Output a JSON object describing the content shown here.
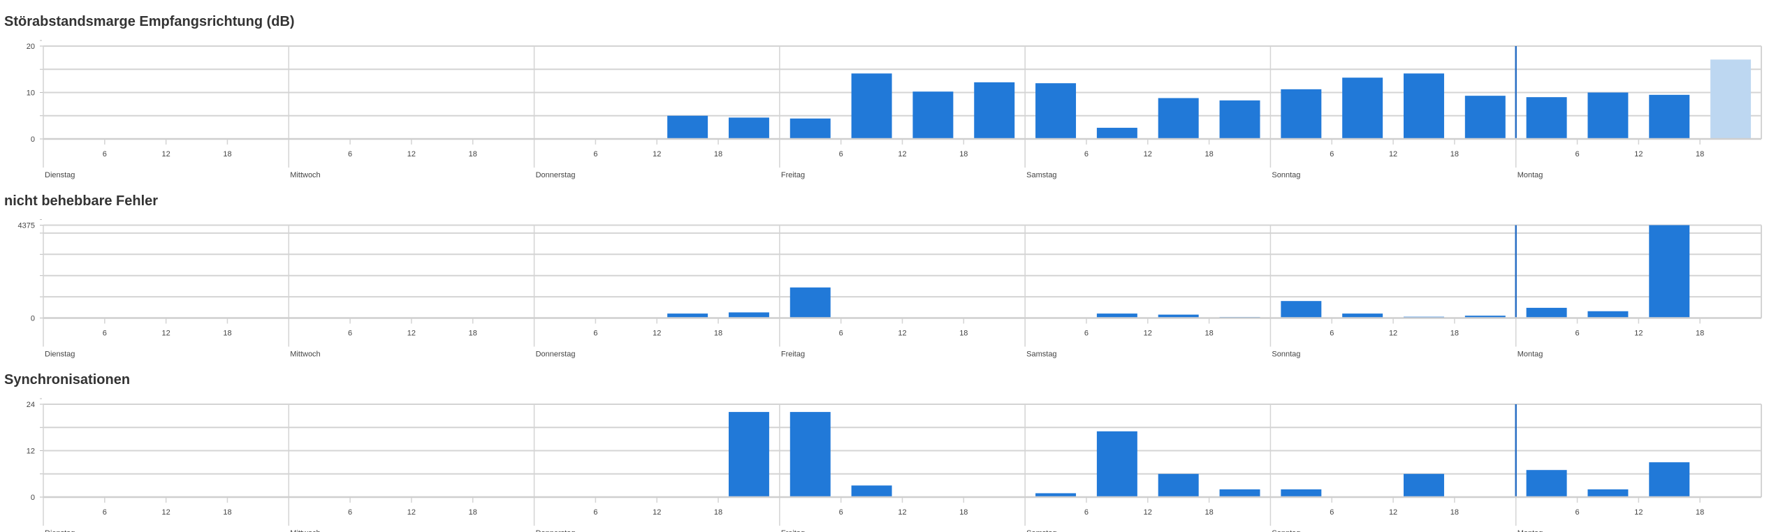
{
  "colors": {
    "bar": "#2179d8",
    "bar_pending": "#bdd7f1",
    "grid": "#d4d4d4",
    "now_line": "#2a6fc4"
  },
  "chart_data": [
    {
      "type": "bar",
      "title": "Störabstandsmarge Empfangsrichtung (dB)",
      "ylim": [
        0,
        20
      ],
      "yticks": [
        0,
        10,
        20
      ],
      "ygrid": [
        0,
        5,
        10,
        15,
        20
      ],
      "days": [
        "Dienstag",
        "Mittwoch",
        "Donnerstag",
        "Freitag",
        "Samstag",
        "Sonntag",
        "Montag"
      ],
      "hour_ticks": [
        "6",
        "12",
        "18"
      ],
      "bin_hours": 6,
      "values": [
        null,
        null,
        null,
        null,
        null,
        null,
        null,
        null,
        null,
        null,
        5,
        4.6,
        4.4,
        14.1,
        10.2,
        12.2,
        12,
        2.4,
        8.8,
        8.3,
        10.7,
        13.2,
        14.1,
        9.3,
        9,
        10,
        9.5,
        17.1
      ],
      "pending_index": 27
    },
    {
      "type": "bar",
      "title": "nicht behebbare Fehler",
      "ylim": [
        0,
        4375
      ],
      "yticks": [
        0,
        4375
      ],
      "ygrid": [
        0,
        1000,
        2000,
        3000,
        4000,
        4375
      ],
      "days": [
        "Dienstag",
        "Mittwoch",
        "Donnerstag",
        "Freitag",
        "Samstag",
        "Sonntag",
        "Montag"
      ],
      "hour_ticks": [
        "6",
        "12",
        "18"
      ],
      "bin_hours": 6,
      "values": [
        null,
        null,
        null,
        null,
        null,
        null,
        null,
        null,
        null,
        null,
        210,
        265,
        1440,
        0,
        0,
        10,
        0,
        210,
        160,
        50,
        800,
        210,
        60,
        110,
        480,
        320,
        4375,
        null
      ],
      "pending_index": null
    },
    {
      "type": "bar",
      "title": "Synchronisationen",
      "ylim": [
        0,
        24
      ],
      "yticks": [
        0,
        12,
        24
      ],
      "ygrid": [
        0,
        6,
        12,
        18,
        24
      ],
      "days": [
        "Dienstag",
        "Mittwoch",
        "Donnerstag",
        "Freitag",
        "Samstag",
        "Sonntag",
        "Montag"
      ],
      "hour_ticks": [
        "6",
        "12",
        "18"
      ],
      "bin_hours": 6,
      "values": [
        null,
        null,
        null,
        null,
        null,
        null,
        null,
        null,
        null,
        null,
        null,
        22,
        22,
        3,
        0,
        0,
        1,
        17,
        6,
        2,
        2,
        0,
        6,
        null,
        7,
        2,
        9,
        null
      ],
      "pending_index": null
    }
  ]
}
